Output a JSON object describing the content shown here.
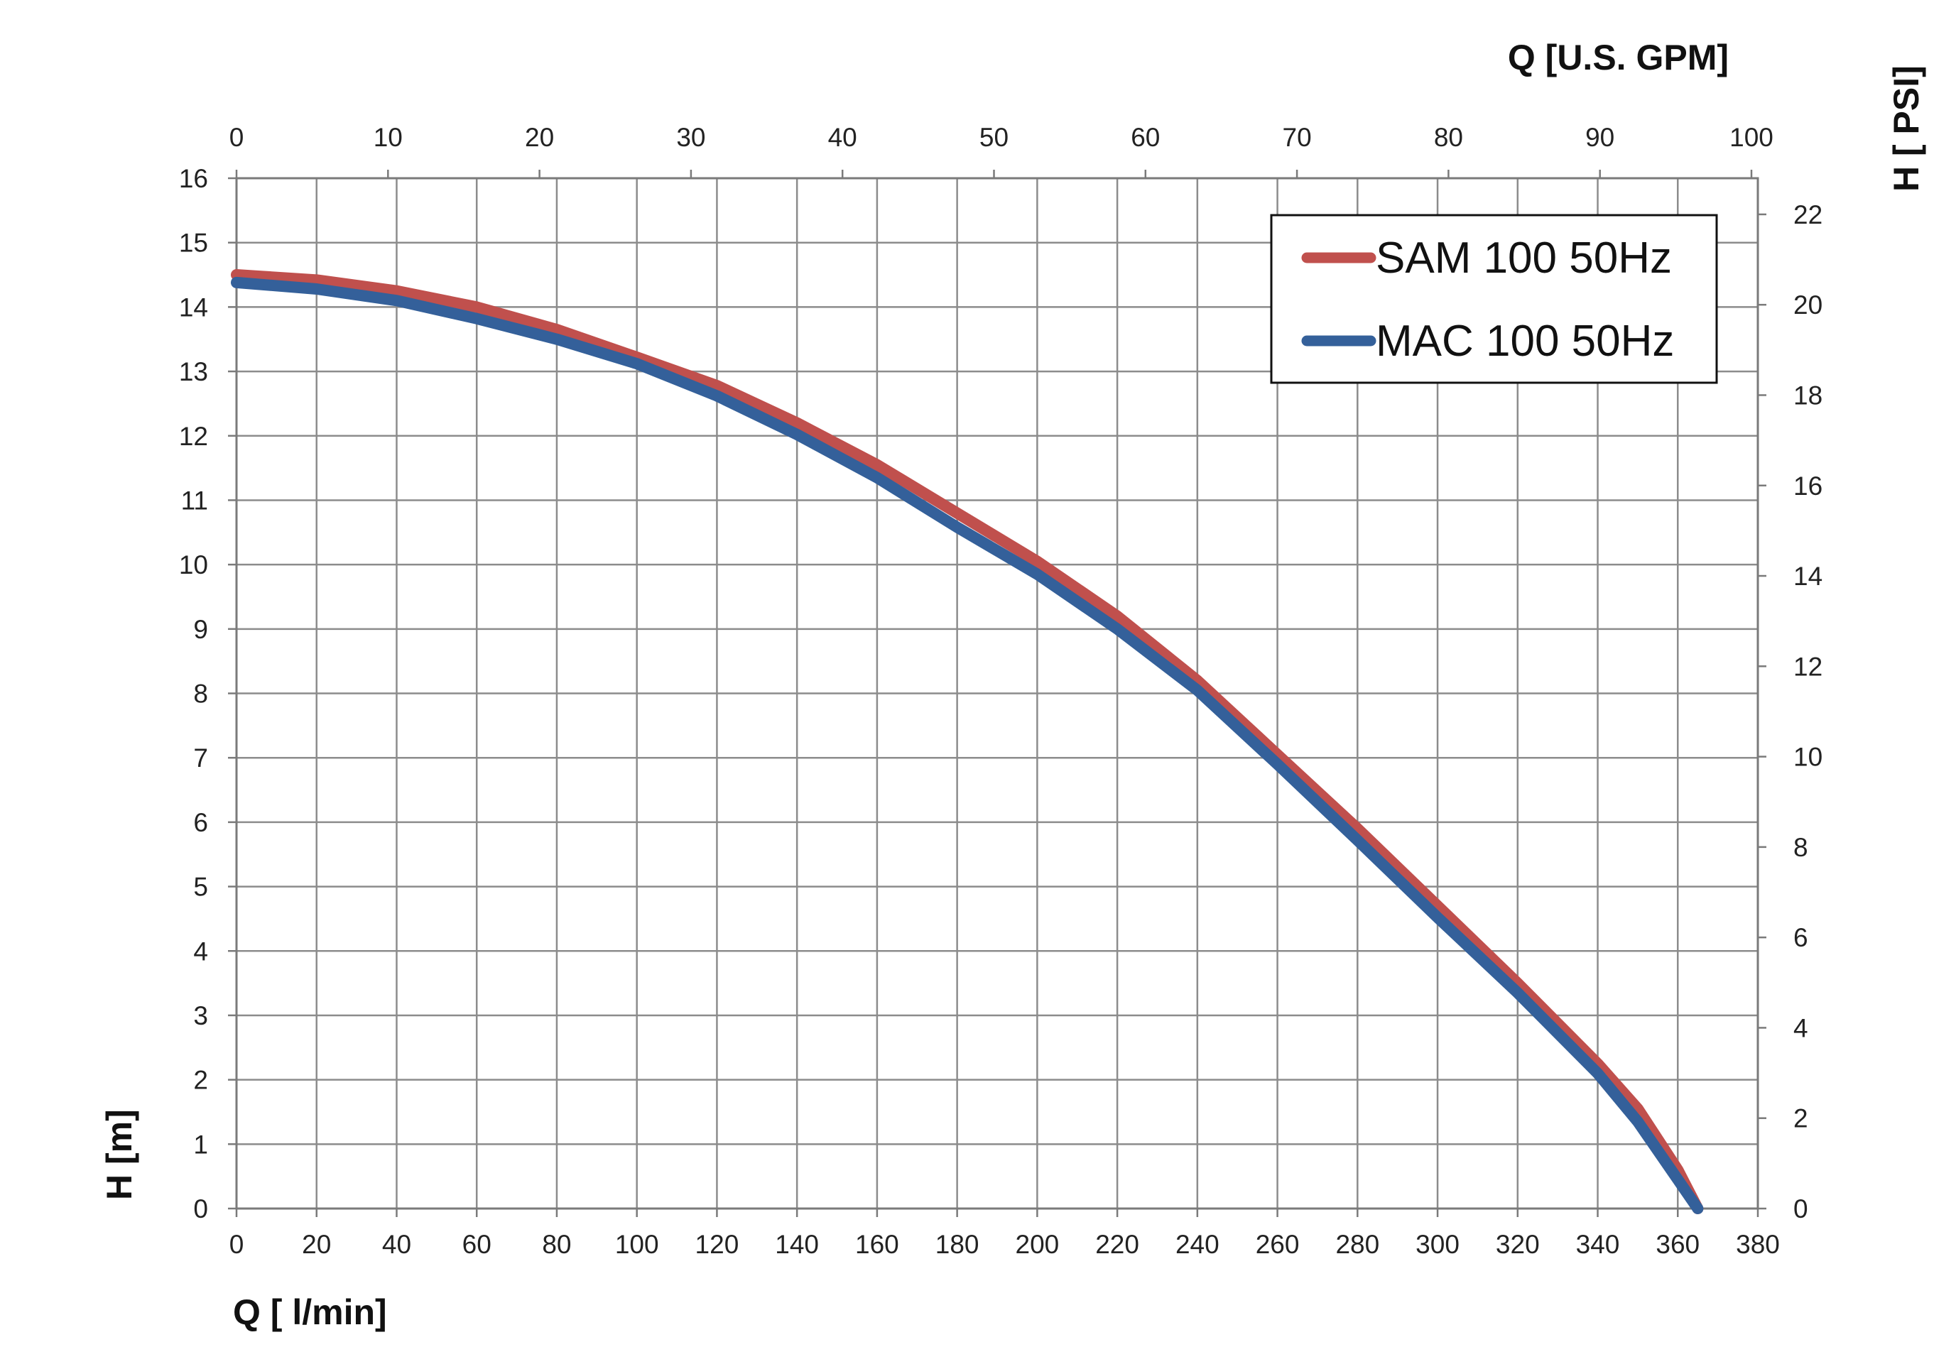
{
  "chart_data": {
    "type": "line",
    "title": "",
    "xlabel": "Q [ l/min]",
    "ylabel": "H [m]",
    "x2label": "Q  [U.S. GPM]",
    "y2label": "H [ PSI]",
    "xlim": [
      0,
      380
    ],
    "ylim": [
      0,
      16
    ],
    "x2lim": [
      0,
      100
    ],
    "y2lim": [
      0,
      22.8
    ],
    "x_ticks": [
      "0",
      "20",
      "40",
      "60",
      "80",
      "100",
      "120",
      "140",
      "160",
      "180",
      "200",
      "220",
      "240",
      "260",
      "280",
      "300",
      "320",
      "340",
      "360",
      "380"
    ],
    "y_ticks": [
      "0",
      "1",
      "2",
      "3",
      "4",
      "5",
      "6",
      "7",
      "8",
      "9",
      "10",
      "11",
      "12",
      "13",
      "14",
      "15",
      "16"
    ],
    "x2_ticks": [
      "0",
      "10",
      "20",
      "30",
      "40",
      "50",
      "60",
      "70",
      "80",
      "90",
      "100"
    ],
    "y2_ticks": [
      "0",
      "2",
      "4",
      "6",
      "8",
      "10",
      "12",
      "14",
      "16",
      "18",
      "20",
      "22"
    ],
    "grid": true,
    "legend_position": "top-right",
    "series": [
      {
        "name": "SAM 100 50Hz",
        "color": "#c0504d",
        "x": [
          0,
          20,
          40,
          60,
          80,
          100,
          120,
          140,
          160,
          180,
          200,
          220,
          240,
          260,
          280,
          300,
          320,
          340,
          350,
          360,
          365
        ],
        "y": [
          14.5,
          14.42,
          14.25,
          14.0,
          13.65,
          13.22,
          12.78,
          12.2,
          11.55,
          10.8,
          10.05,
          9.2,
          8.2,
          7.05,
          5.9,
          4.7,
          3.5,
          2.25,
          1.55,
          0.6,
          0.0
        ]
      },
      {
        "name": "MAC 100 50Hz",
        "color": "#34609a",
        "x": [
          0,
          20,
          40,
          60,
          80,
          100,
          120,
          140,
          160,
          180,
          200,
          220,
          240,
          260,
          280,
          300,
          320,
          340,
          350,
          360,
          365
        ],
        "y": [
          14.38,
          14.28,
          14.1,
          13.82,
          13.5,
          13.12,
          12.62,
          12.02,
          11.35,
          10.58,
          9.85,
          9.0,
          8.05,
          6.9,
          5.72,
          4.52,
          3.35,
          2.1,
          1.35,
          0.45,
          0.0
        ]
      }
    ]
  }
}
